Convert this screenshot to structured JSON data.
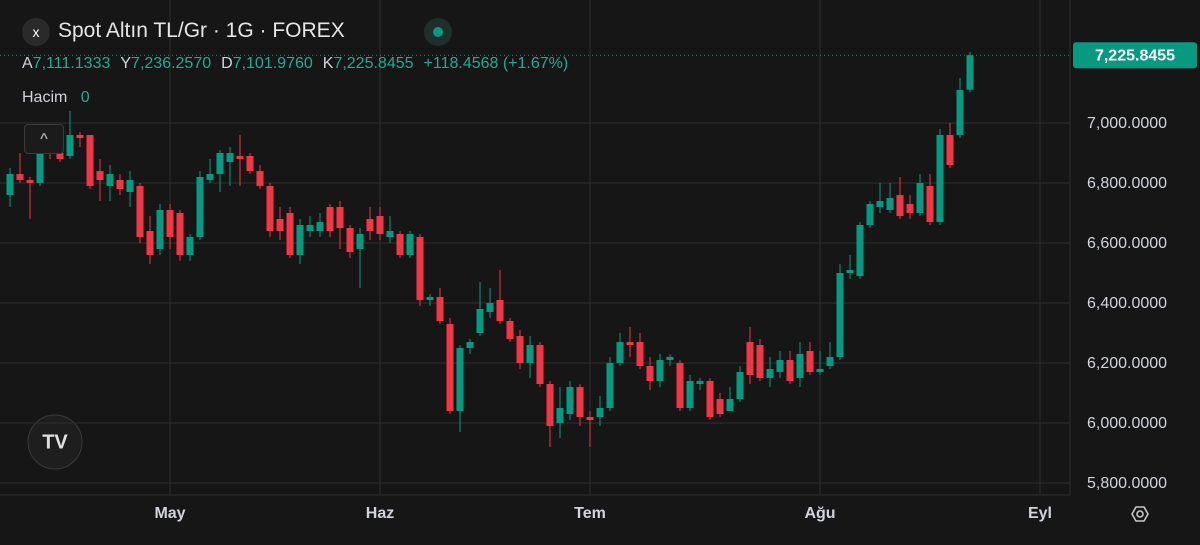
{
  "chart_data": {
    "type": "candlestick",
    "title": "Spot Altın TL/Gr · 1G · FOREX",
    "ohlc_header": [
      {
        "label": "A",
        "value": "7,111.1333"
      },
      {
        "label": "Y",
        "value": "7,236.2570"
      },
      {
        "label": "D",
        "value": "7,101.9760"
      },
      {
        "label": "K",
        "value": "7,225.8455"
      }
    ],
    "change": "+118.4568 (+1.67%)",
    "volume_label": "Hacim",
    "volume_value": "0",
    "last_price_label": "7,225.8455",
    "up_color": "#089981",
    "down_color": "#f23645",
    "grid": true,
    "categories": [
      null,
      null,
      null,
      null,
      null,
      null,
      null,
      null,
      null,
      null,
      null,
      null,
      null,
      null,
      null,
      null,
      "May",
      null,
      null,
      null,
      null,
      null,
      null,
      null,
      null,
      null,
      null,
      null,
      null,
      null,
      null,
      null,
      null,
      null,
      null,
      null,
      null,
      "Haz",
      null,
      null,
      null,
      null,
      null,
      null,
      null,
      null,
      null,
      null,
      null,
      null,
      null,
      null,
      null,
      null,
      null,
      null,
      null,
      null,
      "Tem",
      null,
      null,
      null,
      null,
      null,
      null,
      null,
      null,
      null,
      null,
      null,
      null,
      null,
      null,
      null,
      null,
      null,
      null,
      null,
      null,
      null,
      null,
      "Ağu",
      null,
      null,
      null,
      null,
      null,
      null,
      null,
      null,
      null,
      null,
      null,
      null,
      null,
      null,
      null,
      null,
      null,
      null,
      null,
      null,
      null,
      "Eyl",
      null,
      null
    ],
    "open": [
      6760,
      6830,
      6810,
      6800,
      6920,
      6900,
      6890,
      6960,
      6960,
      6840,
      6790,
      6810,
      6770,
      6790,
      6640,
      6580,
      6710,
      6700,
      6560,
      6620,
      6810,
      6830,
      6870,
      6890,
      6890,
      6840,
      6790,
      6680,
      6700,
      6560,
      6640,
      6640,
      6720,
      6720,
      6650,
      6580,
      6680,
      6690,
      6620,
      6630,
      6560,
      6620,
      6410,
      6420,
      6330,
      6040,
      6250,
      6300,
      6370,
      6410,
      6340,
      6290,
      6200,
      6260,
      6130,
      6000,
      6030,
      6120,
      6020,
      6020,
      6050,
      6200,
      6270,
      6270,
      6190,
      6140,
      6210,
      6200,
      6050,
      6130,
      6140,
      6080,
      6040,
      6080,
      6270,
      6260,
      6150,
      6170,
      6210,
      6150,
      6240,
      6170,
      6190,
      6220,
      6500,
      6490,
      6660,
      6720,
      6710,
      6760,
      6730,
      6700,
      6790,
      6670,
      6960,
      6960,
      7111.1333,
      null,
      null,
      null,
      null,
      null,
      null,
      null,
      null,
      null
    ],
    "high": [
      6850,
      6900,
      6820,
      6950,
      6960,
      6960,
      7040,
      6970,
      6960,
      6880,
      6860,
      6830,
      6840,
      6800,
      6690,
      6730,
      6730,
      6710,
      6630,
      6840,
      6880,
      6910,
      6920,
      6960,
      6900,
      6860,
      6800,
      6720,
      6720,
      6680,
      6690,
      6700,
      6730,
      6740,
      6660,
      6650,
      6720,
      6720,
      6690,
      6640,
      6640,
      6630,
      6430,
      6450,
      6350,
      6260,
      6280,
      6470,
      6450,
      6510,
      6350,
      6310,
      6290,
      6270,
      6140,
      6120,
      6140,
      6130,
      6040,
      6090,
      6220,
      6300,
      6320,
      6300,
      6220,
      6230,
      6230,
      6210,
      6160,
      6150,
      6150,
      6100,
      6120,
      6190,
      6320,
      6280,
      6220,
      6240,
      6240,
      6270,
      6270,
      6240,
      6270,
      6530,
      6560,
      6670,
      6740,
      6800,
      6800,
      6820,
      6760,
      6830,
      6830,
      6980,
      7000,
      7150,
      7236.257,
      null,
      null,
      null,
      null,
      null,
      null,
      null,
      null,
      null
    ],
    "low": [
      6720,
      6800,
      6680,
      6790,
      6880,
      6870,
      6880,
      6920,
      6780,
      6740,
      6740,
      6760,
      6720,
      6600,
      6530,
      6560,
      6580,
      6540,
      6540,
      6610,
      6800,
      6770,
      6790,
      6790,
      6830,
      6780,
      6620,
      6610,
      6550,
      6530,
      6620,
      6620,
      6620,
      6580,
      6550,
      6450,
      6610,
      6610,
      6600,
      6550,
      6550,
      6390,
      6390,
      6330,
      6030,
      5970,
      6230,
      6290,
      6350,
      6330,
      6270,
      6180,
      6150,
      6120,
      5920,
      5950,
      6010,
      5990,
      5920,
      5990,
      6040,
      6190,
      6220,
      6180,
      6110,
      6120,
      6190,
      6040,
      6040,
      6110,
      6010,
      6020,
      6040,
      6070,
      6130,
      6140,
      6120,
      6150,
      6130,
      6120,
      6160,
      6160,
      6180,
      6210,
      6480,
      6480,
      6650,
      6700,
      6700,
      6680,
      6680,
      6690,
      6660,
      6660,
      6850,
      6950,
      7101.976,
      null,
      null,
      null,
      null,
      null,
      null,
      null,
      null,
      null
    ],
    "close": [
      6830,
      6810,
      6800,
      6920,
      6900,
      6880,
      6960,
      6950,
      6790,
      6810,
      6830,
      6780,
      6810,
      6620,
      6560,
      6710,
      6620,
      6560,
      6620,
      6820,
      6830,
      6900,
      6900,
      6880,
      6840,
      6790,
      6640,
      6640,
      6560,
      6660,
      6660,
      6670,
      6640,
      6650,
      6570,
      6630,
      6640,
      6630,
      6640,
      6560,
      6630,
      6410,
      6420,
      6340,
      6040,
      6250,
      6270,
      6380,
      6400,
      6340,
      6280,
      6200,
      6260,
      6130,
      5990,
      6050,
      6120,
      6020,
      6010,
      6050,
      6200,
      6270,
      6260,
      6190,
      6140,
      6210,
      6220,
      6050,
      6140,
      6140,
      6020,
      6030,
      6080,
      6170,
      6160,
      6150,
      6180,
      6210,
      6140,
      6230,
      6170,
      6180,
      6220,
      6500,
      6510,
      6660,
      6730,
      6740,
      6750,
      6690,
      6700,
      6800,
      6670,
      6960,
      6860,
      7110,
      7225.8455,
      null,
      null,
      null,
      null,
      null,
      null,
      null,
      null,
      null
    ],
    "ylim": [
      5760,
      7410
    ],
    "yticks": [
      {
        "value": 5800,
        "label": "5,800.0000"
      },
      {
        "value": 6000,
        "label": "6,000.0000"
      },
      {
        "value": 6200,
        "label": "6,200.0000"
      },
      {
        "value": 6400,
        "label": "6,400.0000"
      },
      {
        "value": 6600,
        "label": "6,600.0000"
      },
      {
        "value": 6800,
        "label": "6,800.0000"
      },
      {
        "value": 7000,
        "label": "7,000.0000"
      }
    ]
  }
}
